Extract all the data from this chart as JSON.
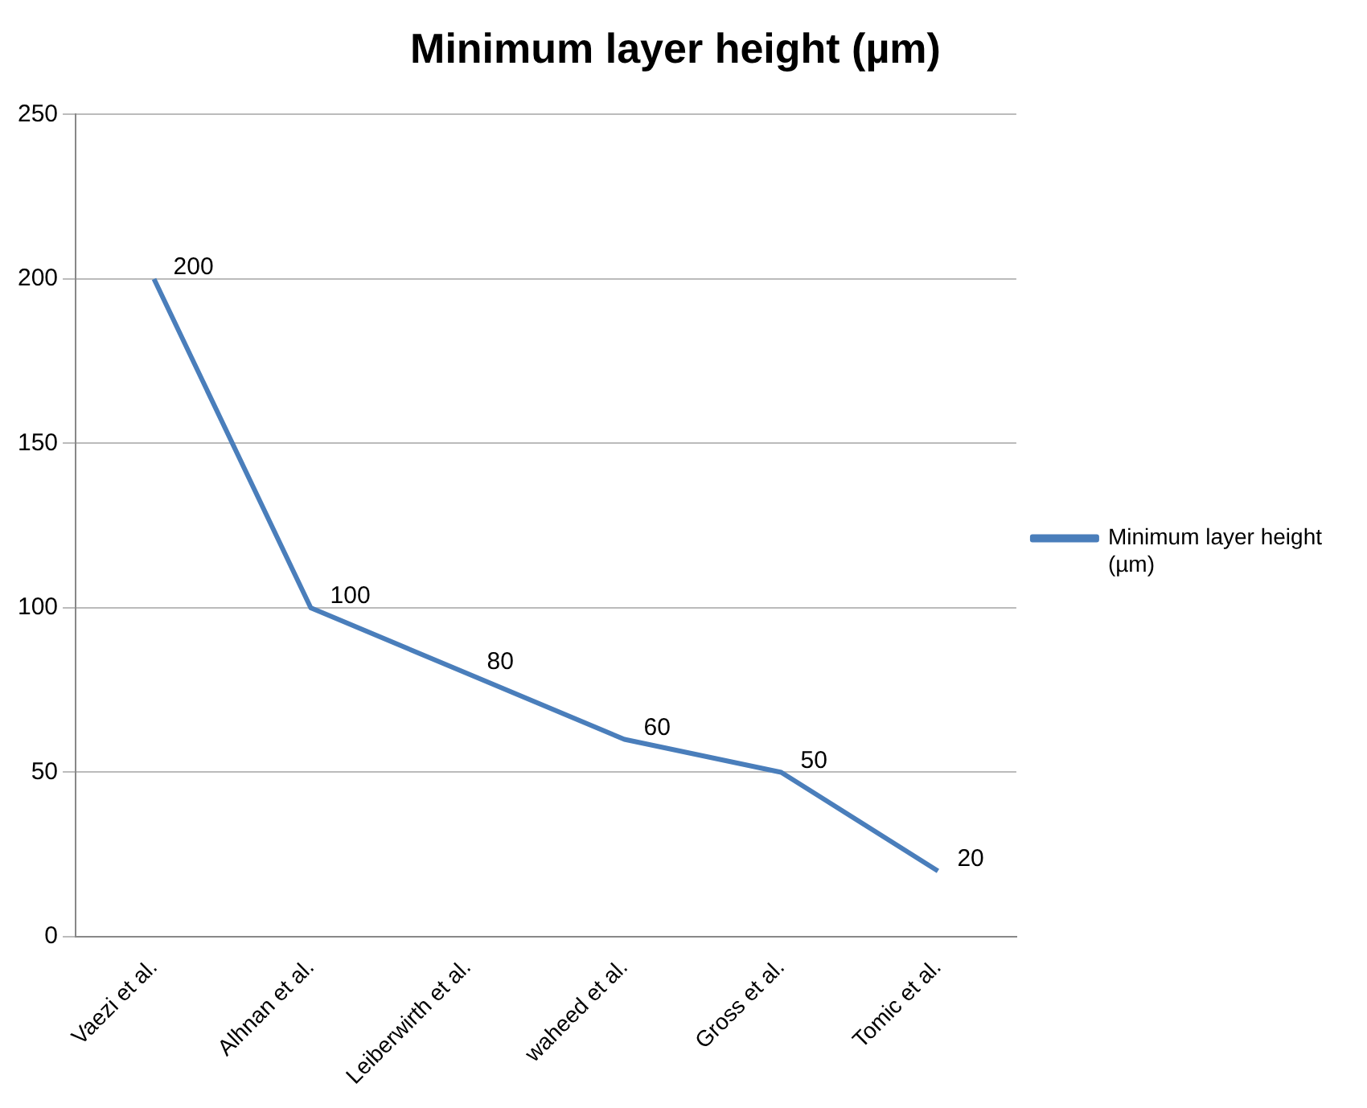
{
  "chart_data": {
    "type": "line",
    "title": "Minimum layer height (µm)",
    "categories": [
      "Vaezi et al.",
      "Alhnan et al.",
      "Leiberwirth et al.",
      "waheed et al.",
      "Gross et al.",
      "Tomic et al."
    ],
    "series": [
      {
        "name": "Minimum layer height (µm)",
        "color": "#4a7ebb",
        "values": [
          200,
          100,
          80,
          60,
          50,
          20
        ]
      }
    ],
    "ylim": [
      0,
      250
    ],
    "yticks": [
      0,
      50,
      100,
      150,
      200,
      250
    ],
    "grid": "y",
    "legend": "right",
    "data_labels": true,
    "marker": "none",
    "line_style": "solid"
  }
}
